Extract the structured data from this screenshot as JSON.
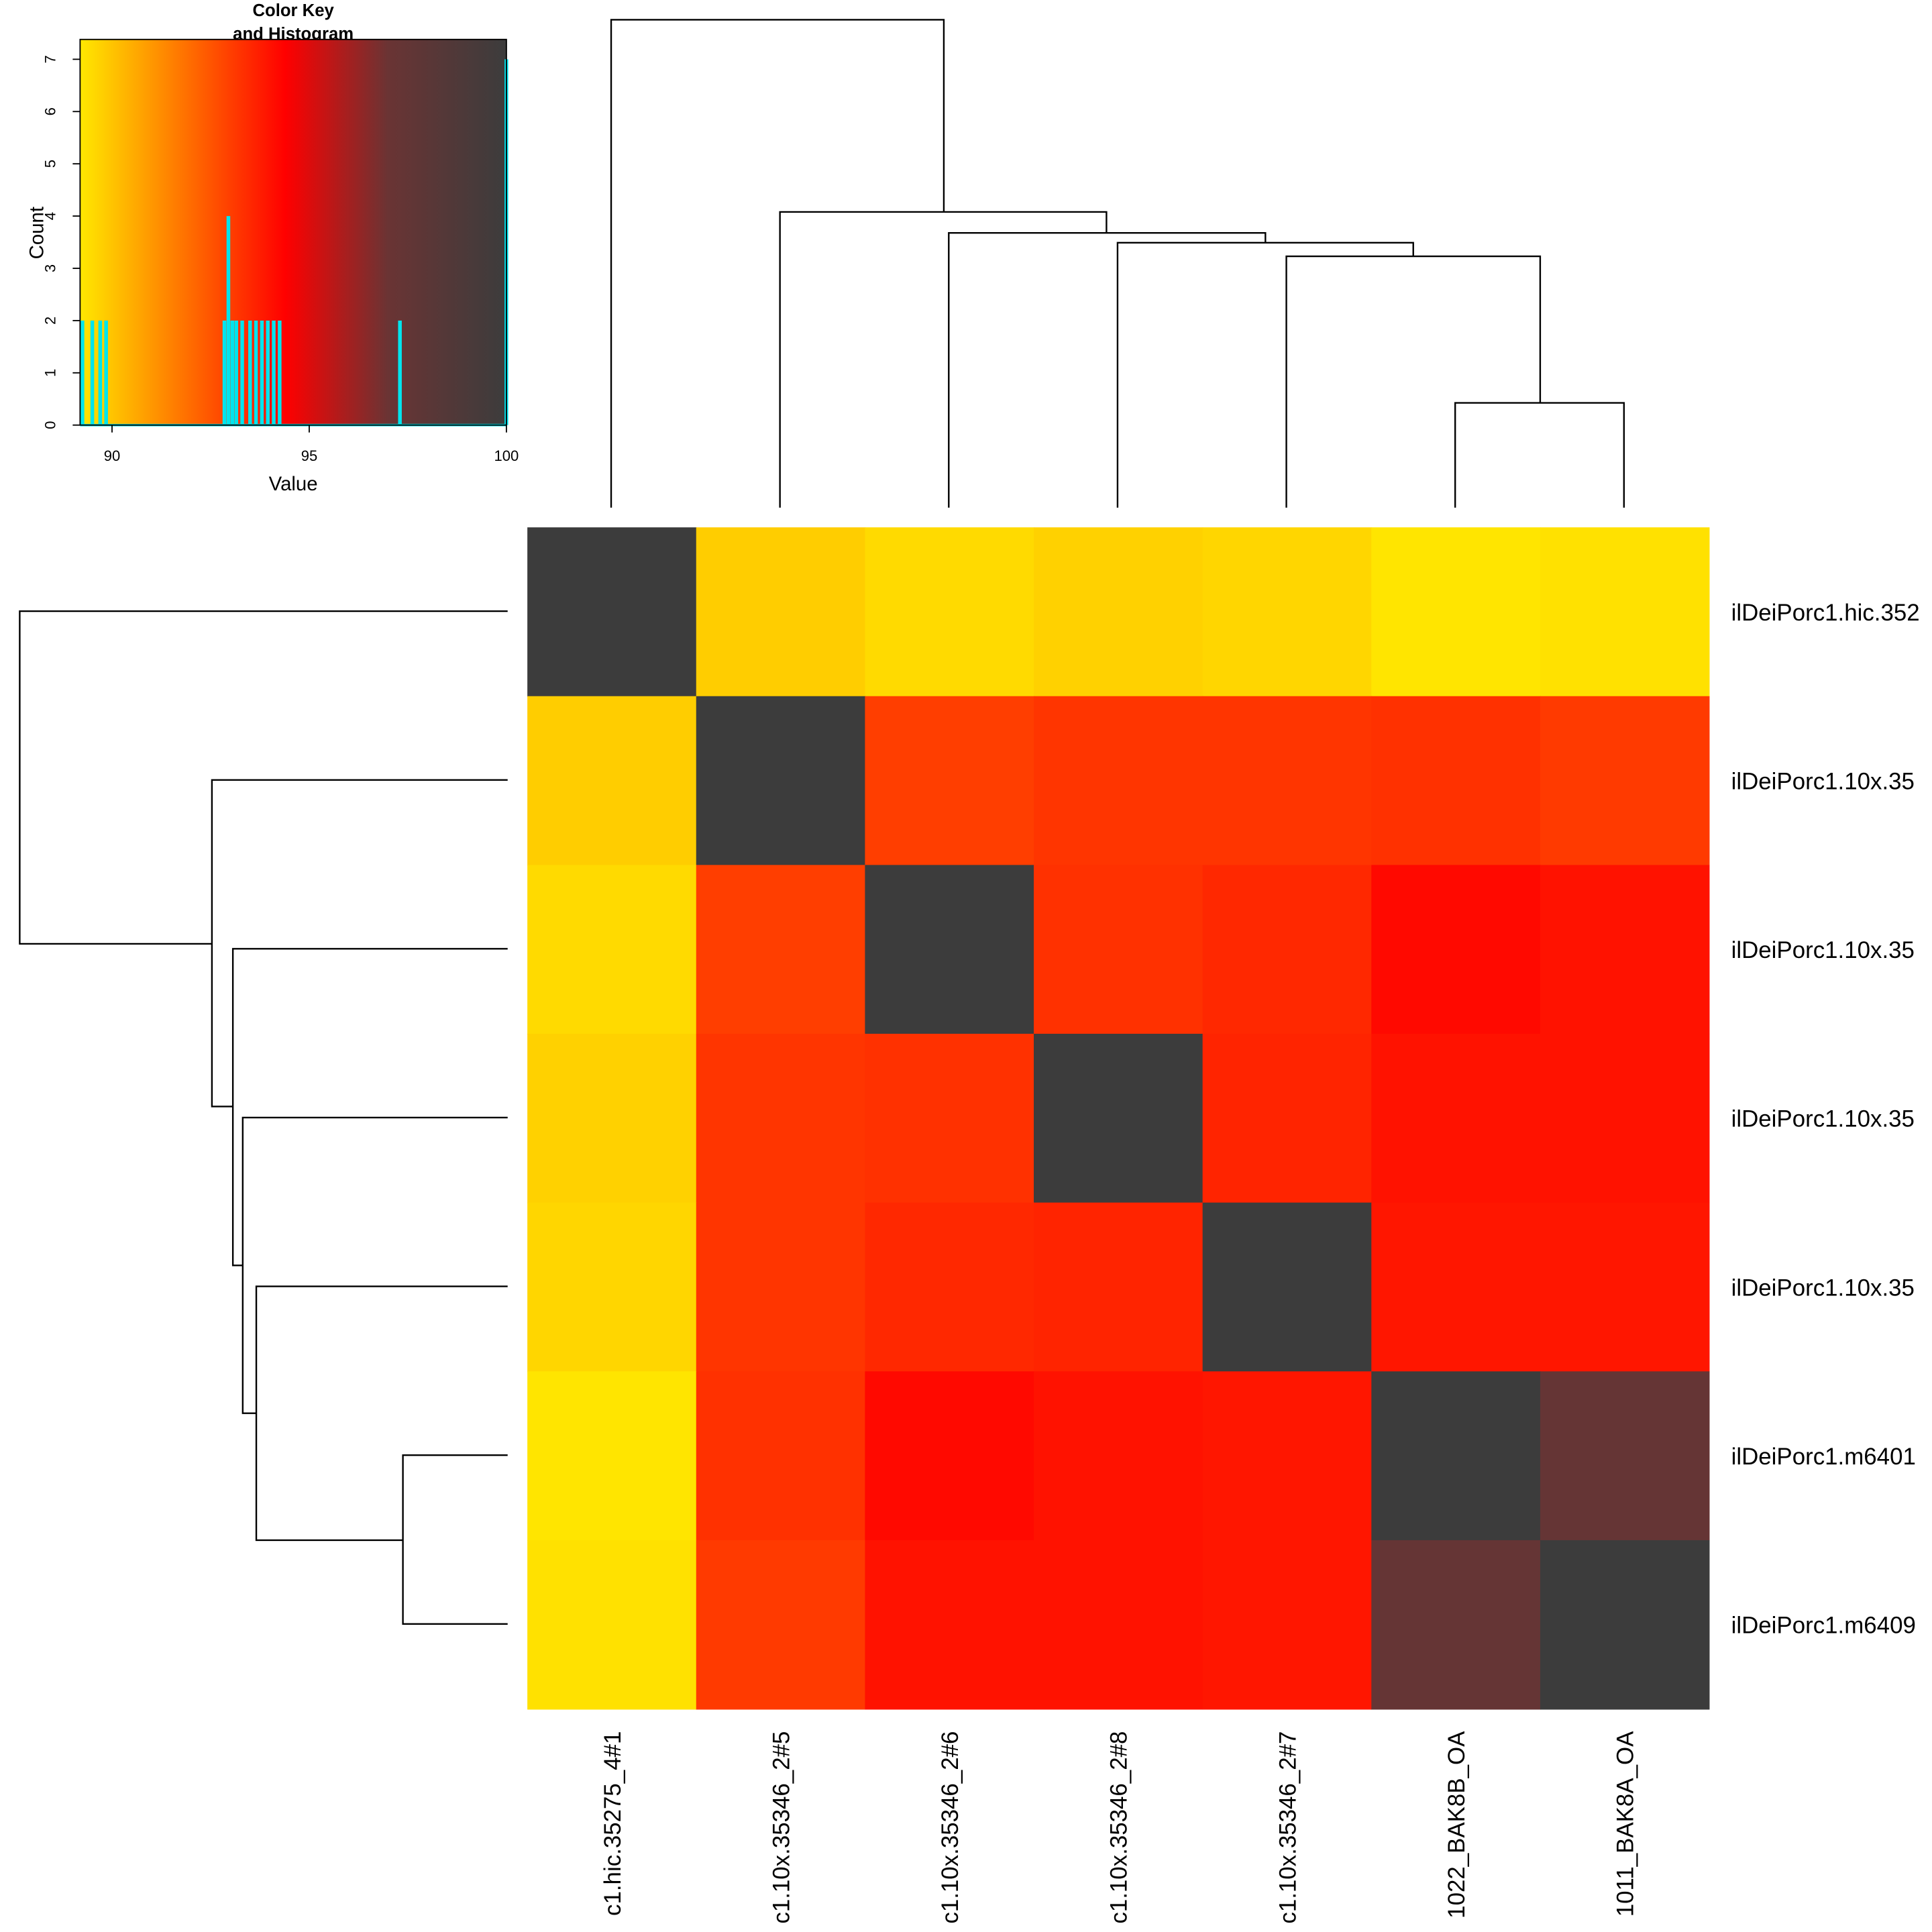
{
  "chart_data": {
    "type": "heatmap",
    "row_labels": [
      "ilDeiPorc1.hic.352",
      "ilDeiPorc1.10x.35",
      "ilDeiPorc1.10x.35",
      "ilDeiPorc1.10x.35",
      "ilDeiPorc1.10x.35",
      "ilDeiPorc1.m6401",
      "ilDeiPorc1.m6409"
    ],
    "col_labels": [
      "c1.hic.35275_4#1",
      "c1.10x.35346_2#5",
      "c1.10x.35346_2#6",
      "c1.10x.35346_2#8",
      "c1.10x.35346_2#7",
      "1022_BAK8B_OA",
      "1011_BAK8A_OA"
    ],
    "matrix": [
      [
        100,
        89.8,
        89.5,
        89.7,
        89.6,
        89.25,
        89.35
      ],
      [
        89.8,
        100,
        93.0,
        93.2,
        93.2,
        93.3,
        93.1
      ],
      [
        89.5,
        93.0,
        100,
        93.3,
        93.5,
        94.2,
        94.0
      ],
      [
        89.7,
        93.2,
        93.3,
        100,
        93.6,
        94.0,
        94.0
      ],
      [
        89.6,
        93.2,
        93.5,
        93.6,
        100,
        93.9,
        93.9
      ],
      [
        89.25,
        93.3,
        94.2,
        94.0,
        93.9,
        100,
        97.3
      ],
      [
        89.35,
        93.1,
        94.0,
        94.0,
        93.9,
        97.3,
        100
      ]
    ],
    "color_stops": [
      {
        "value": 89.19,
        "color": "#ffe800"
      },
      {
        "value": 94.4,
        "color": "#ff0000"
      },
      {
        "value": 97,
        "color": "#6a3434"
      },
      {
        "value": 100,
        "color": "#3c3c3c"
      }
    ],
    "key": {
      "title_lines": [
        "Color Key",
        "and Histogram"
      ],
      "xlabel": "Value",
      "ylabel": "Count",
      "xlim": [
        89.19,
        100
      ],
      "ylim": [
        0,
        7.38
      ],
      "xticks": [
        90,
        95,
        100
      ],
      "yticks": [
        0,
        1,
        2,
        3,
        4,
        5,
        6,
        7
      ],
      "hist_color": "#00e5ee",
      "hist_x": [
        89.25,
        89.5,
        89.7,
        89.85,
        92.85,
        92.95,
        93.05,
        93.15,
        93.3,
        93.5,
        93.65,
        93.8,
        93.95,
        94.1,
        94.25,
        97.3,
        100
      ],
      "hist_counts": [
        2,
        2,
        2,
        2,
        2,
        4,
        2,
        2,
        2,
        2,
        2,
        2,
        2,
        2,
        2,
        2,
        7
      ]
    }
  }
}
